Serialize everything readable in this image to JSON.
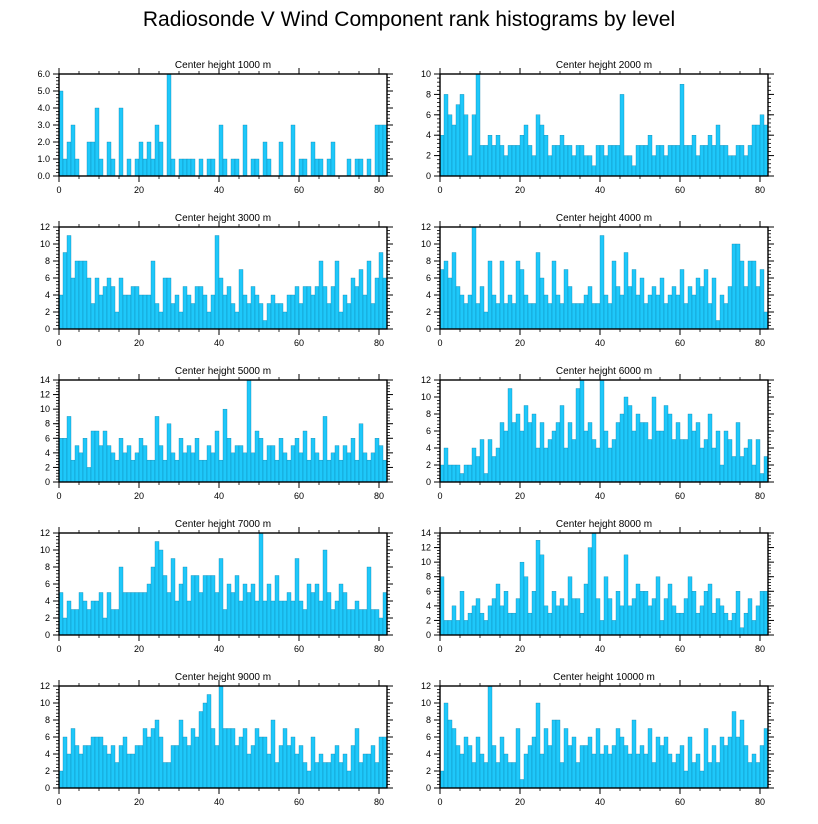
{
  "title": "Radiosonde V Wind Component rank histograms by level",
  "bar_color": "#1ec8fa",
  "bar_edge_color": "#0a7fa8",
  "chart_data": [
    {
      "type": "bar",
      "title": "Center height 1000 m",
      "x_start": 0,
      "x_ticks": [
        0,
        20,
        40,
        60,
        80
      ],
      "xlim": [
        0,
        82
      ],
      "ylim": [
        0,
        6
      ],
      "y_ticks": [
        0,
        1,
        2,
        3,
        4,
        5,
        6
      ],
      "y_tick_labels": [
        "0.0",
        "1.0",
        "2.0",
        "3.0",
        "4.0",
        "5.0",
        "6.0"
      ],
      "values": [
        5,
        1,
        2,
        3,
        1,
        0,
        0,
        2,
        2,
        4,
        1,
        0,
        2,
        1,
        0,
        4,
        0,
        1,
        0,
        1,
        2,
        1,
        2,
        1,
        3,
        2,
        0,
        6,
        1,
        0,
        1,
        1,
        1,
        1,
        0,
        1,
        0,
        1,
        1,
        0,
        3,
        1,
        0,
        1,
        1,
        0,
        3,
        0,
        1,
        1,
        0,
        2,
        1,
        0,
        0,
        2,
        0,
        0,
        3,
        0,
        1,
        1,
        0,
        2,
        1,
        1,
        0,
        1,
        2,
        0,
        0,
        0,
        1,
        0,
        1,
        1,
        0,
        1,
        0,
        3,
        3,
        3
      ]
    },
    {
      "type": "bar",
      "title": "Center height 2000 m",
      "x_start": 0,
      "x_ticks": [
        0,
        20,
        40,
        60,
        80
      ],
      "xlim": [
        0,
        82
      ],
      "ylim": [
        0,
        10
      ],
      "y_ticks": [
        0,
        2,
        4,
        6,
        8,
        10
      ],
      "y_tick_labels": [
        "0",
        "2",
        "4",
        "6",
        "8",
        "10"
      ],
      "values": [
        4,
        8,
        6,
        5,
        7,
        8,
        6,
        2,
        6,
        10,
        3,
        3,
        4,
        3,
        4,
        3,
        2,
        3,
        3,
        3,
        4,
        5,
        3,
        2,
        6,
        5,
        4,
        2,
        3,
        3,
        4,
        3,
        3,
        2,
        3,
        3,
        2,
        2,
        1,
        3,
        3,
        2,
        3,
        3,
        3,
        8,
        2,
        2,
        1,
        3,
        3,
        3,
        4,
        2,
        3,
        3,
        2,
        3,
        3,
        3,
        9,
        3,
        3,
        4,
        2,
        3,
        3,
        4,
        3,
        5,
        3,
        3,
        2,
        2,
        3,
        3,
        2,
        3,
        5,
        5,
        6,
        5
      ]
    },
    {
      "type": "bar",
      "title": "Center height 3000 m",
      "x_start": 0,
      "x_ticks": [
        0,
        20,
        40,
        60,
        80
      ],
      "xlim": [
        0,
        82
      ],
      "ylim": [
        0,
        12
      ],
      "y_ticks": [
        0,
        2,
        4,
        6,
        8,
        10,
        12
      ],
      "y_tick_labels": [
        "0",
        "2",
        "4",
        "6",
        "8",
        "10",
        "12"
      ],
      "values": [
        4,
        9,
        11,
        6,
        8,
        8,
        8,
        6,
        3,
        6,
        4,
        5,
        6,
        5,
        2,
        6,
        4,
        4,
        5,
        5,
        4,
        4,
        4,
        8,
        3,
        2,
        6,
        6,
        3,
        4,
        2,
        5,
        4,
        3,
        5,
        5,
        4,
        2,
        4,
        11,
        6,
        4,
        5,
        3,
        2,
        7,
        4,
        3,
        5,
        4,
        3,
        1,
        3,
        4,
        3,
        3,
        2,
        4,
        4,
        5,
        3,
        5,
        5,
        4,
        5,
        8,
        5,
        3,
        5,
        8,
        2,
        4,
        3,
        6,
        5,
        7,
        4,
        8,
        3,
        6,
        9,
        6
      ]
    },
    {
      "type": "bar",
      "title": "Center height 4000 m",
      "x_start": 0,
      "x_ticks": [
        0,
        20,
        40,
        60,
        80
      ],
      "xlim": [
        0,
        82
      ],
      "ylim": [
        0,
        12
      ],
      "y_ticks": [
        0,
        2,
        4,
        6,
        8,
        10,
        12
      ],
      "y_tick_labels": [
        "0",
        "2",
        "4",
        "6",
        "8",
        "10",
        "12"
      ],
      "values": [
        7,
        8,
        6,
        9,
        5,
        4,
        3,
        4,
        12,
        3,
        5,
        2,
        8,
        4,
        3,
        8,
        3,
        4,
        3,
        8,
        7,
        4,
        3,
        3,
        9,
        6,
        4,
        3,
        8,
        4,
        3,
        7,
        5,
        3,
        3,
        3,
        4,
        5,
        3,
        3,
        11,
        4,
        3,
        8,
        5,
        4,
        9,
        5,
        7,
        4,
        6,
        3,
        4,
        5,
        4,
        6,
        3,
        4,
        5,
        4,
        7,
        3,
        5,
        4,
        6,
        5,
        7,
        3,
        6,
        1,
        4,
        3,
        5,
        10,
        10,
        8,
        5,
        8,
        8,
        5,
        7,
        2
      ]
    },
    {
      "type": "bar",
      "title": "Center height 5000 m",
      "x_start": 0,
      "x_ticks": [
        0,
        20,
        40,
        60,
        80
      ],
      "xlim": [
        0,
        82
      ],
      "ylim": [
        0,
        14
      ],
      "y_ticks": [
        0,
        2,
        4,
        6,
        8,
        10,
        12,
        14
      ],
      "y_tick_labels": [
        "0",
        "2",
        "4",
        "6",
        "8",
        "10",
        "12",
        "14"
      ],
      "values": [
        6,
        6,
        9,
        3,
        5,
        4,
        6,
        2,
        7,
        7,
        5,
        7,
        5,
        4,
        3,
        6,
        4,
        5,
        3,
        4,
        6,
        5,
        3,
        3,
        9,
        5,
        3,
        8,
        4,
        3,
        6,
        4,
        5,
        4,
        6,
        3,
        3,
        5,
        4,
        7,
        3,
        10,
        6,
        4,
        5,
        5,
        4,
        14,
        4,
        7,
        6,
        3,
        5,
        5,
        3,
        6,
        4,
        3,
        5,
        6,
        4,
        7,
        3,
        6,
        4,
        3,
        9,
        3,
        4,
        5,
        3,
        5,
        4,
        6,
        3,
        8,
        4,
        3,
        4,
        6,
        5,
        3
      ]
    },
    {
      "type": "bar",
      "title": "Center height 6000 m",
      "x_start": 0,
      "x_ticks": [
        0,
        20,
        40,
        60,
        80
      ],
      "xlim": [
        0,
        82
      ],
      "ylim": [
        0,
        12
      ],
      "y_ticks": [
        0,
        2,
        4,
        6,
        8,
        10,
        12
      ],
      "y_tick_labels": [
        "0",
        "2",
        "4",
        "6",
        "8",
        "10",
        "12"
      ],
      "values": [
        2,
        4,
        2,
        2,
        2,
        1,
        2,
        2,
        4,
        3,
        5,
        1,
        5,
        3,
        4,
        7,
        6,
        11,
        7,
        8,
        6,
        9,
        7,
        8,
        4,
        7,
        4,
        5,
        6,
        7,
        9,
        4,
        7,
        5,
        11,
        12,
        6,
        7,
        5,
        4,
        12,
        6,
        4,
        5,
        7,
        8,
        10,
        9,
        6,
        8,
        7,
        7,
        5,
        10,
        6,
        6,
        9,
        8,
        5,
        7,
        5,
        5,
        8,
        6,
        7,
        4,
        5,
        8,
        4,
        6,
        2,
        6,
        5,
        3,
        7,
        3,
        4,
        5,
        2,
        5,
        1,
        3
      ]
    },
    {
      "type": "bar",
      "title": "Center height 7000 m",
      "x_start": 0,
      "x_ticks": [
        0,
        20,
        40,
        60,
        80
      ],
      "xlim": [
        0,
        82
      ],
      "ylim": [
        0,
        12
      ],
      "y_ticks": [
        0,
        2,
        4,
        6,
        8,
        10,
        12
      ],
      "y_tick_labels": [
        "0",
        "2",
        "4",
        "6",
        "8",
        "10",
        "12"
      ],
      "values": [
        5,
        2,
        4,
        3,
        3,
        5,
        4,
        3,
        4,
        4,
        5,
        2,
        5,
        3,
        3,
        8,
        5,
        5,
        5,
        5,
        5,
        5,
        6,
        8,
        11,
        10,
        7,
        5,
        9,
        4,
        6,
        8,
        4,
        7,
        7,
        5,
        7,
        7,
        7,
        5,
        9,
        3,
        6,
        5,
        7,
        4,
        6,
        5,
        6,
        4,
        12,
        4,
        6,
        4,
        7,
        4,
        4,
        5,
        4,
        9,
        4,
        3,
        6,
        5,
        6,
        4,
        10,
        5,
        3,
        4,
        6,
        5,
        3,
        3,
        4,
        3,
        3,
        8,
        3,
        3,
        2,
        5
      ]
    },
    {
      "type": "bar",
      "title": "Center height 8000 m",
      "x_start": 0,
      "x_ticks": [
        0,
        20,
        40,
        60,
        80
      ],
      "xlim": [
        0,
        82
      ],
      "ylim": [
        0,
        14
      ],
      "y_ticks": [
        0,
        2,
        4,
        6,
        8,
        10,
        12,
        14
      ],
      "y_tick_labels": [
        "0",
        "2",
        "4",
        "6",
        "8",
        "10",
        "12",
        "14"
      ],
      "values": [
        8,
        2,
        2,
        4,
        2,
        6,
        2,
        3,
        4,
        5,
        3,
        2,
        4,
        5,
        7,
        4,
        6,
        3,
        3,
        5,
        10,
        8,
        3,
        6,
        13,
        11,
        4,
        3,
        6,
        4,
        5,
        4,
        8,
        5,
        5,
        3,
        7,
        12,
        14,
        5,
        2,
        8,
        5,
        2,
        6,
        4,
        11,
        4,
        5,
        7,
        6,
        6,
        4,
        5,
        8,
        2,
        5,
        7,
        4,
        3,
        3,
        5,
        8,
        6,
        3,
        4,
        6,
        7,
        3,
        5,
        4,
        3,
        2,
        3,
        6,
        1,
        3,
        5,
        2,
        4,
        6,
        6
      ]
    },
    {
      "type": "bar",
      "title": "Center height 9000 m",
      "x_start": 0,
      "x_ticks": [
        0,
        20,
        40,
        60,
        80
      ],
      "xlim": [
        0,
        82
      ],
      "ylim": [
        0,
        12
      ],
      "y_ticks": [
        0,
        2,
        4,
        6,
        8,
        10,
        12
      ],
      "y_tick_labels": [
        "0",
        "2",
        "4",
        "6",
        "8",
        "10",
        "12"
      ],
      "values": [
        2,
        6,
        4,
        7,
        5,
        4,
        5,
        5,
        6,
        6,
        6,
        5,
        4,
        5,
        3,
        5,
        6,
        4,
        4,
        5,
        5,
        7,
        6,
        7,
        8,
        6,
        3,
        3,
        5,
        5,
        8,
        6,
        5,
        7,
        6,
        9,
        10,
        11,
        7,
        5,
        12,
        7,
        7,
        7,
        5,
        6,
        7,
        4,
        5,
        7,
        6,
        6,
        4,
        8,
        3,
        5,
        7,
        5,
        6,
        4,
        5,
        3,
        2,
        6,
        3,
        4,
        3,
        3,
        4,
        5,
        3,
        4,
        2,
        5,
        7,
        3,
        4,
        4,
        5,
        3,
        6,
        6
      ]
    },
    {
      "type": "bar",
      "title": "Center height 10000 m",
      "x_start": 0,
      "x_ticks": [
        0,
        20,
        40,
        60,
        80
      ],
      "xlim": [
        0,
        82
      ],
      "ylim": [
        0,
        12
      ],
      "y_ticks": [
        0,
        2,
        4,
        6,
        8,
        10,
        12
      ],
      "y_tick_labels": [
        "0",
        "2",
        "4",
        "6",
        "8",
        "10",
        "12"
      ],
      "values": [
        2,
        10,
        8,
        7,
        5,
        4,
        6,
        5,
        3,
        6,
        4,
        3,
        12,
        5,
        3,
        6,
        4,
        3,
        3,
        7,
        1,
        4,
        5,
        6,
        10,
        4,
        7,
        5,
        8,
        8,
        3,
        7,
        5,
        6,
        3,
        5,
        5,
        6,
        4,
        7,
        4,
        5,
        4,
        5,
        7,
        6,
        5,
        4,
        8,
        4,
        5,
        4,
        7,
        3,
        6,
        5,
        6,
        4,
        3,
        4,
        5,
        2,
        6,
        3,
        4,
        2,
        7,
        3,
        5,
        3,
        6,
        5,
        6,
        9,
        6,
        8,
        5,
        3,
        4,
        3,
        5,
        7
      ]
    }
  ]
}
